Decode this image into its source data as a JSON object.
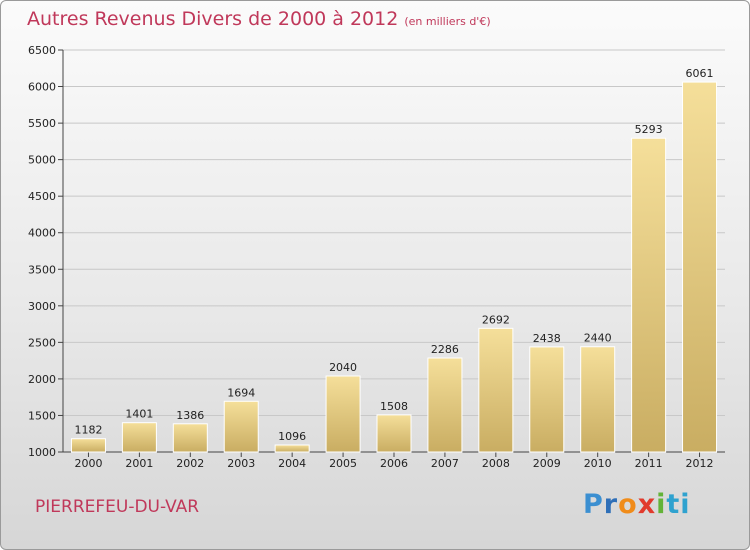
{
  "title": "Autres Revenus Divers de 2000 à 2012",
  "subtitle": "(en milliers d'€)",
  "location": "PIERREFEU-DU-VAR",
  "logo": {
    "text": "Proxiti",
    "letters": [
      "P",
      "r",
      "o",
      "x",
      "i",
      "ti"
    ]
  },
  "colors": {
    "title": "#c0385a",
    "bar_light": "#f5df9a",
    "bar_dark": "#c9ad62"
  },
  "chart_data": {
    "type": "bar",
    "categories": [
      "2000",
      "2001",
      "2002",
      "2003",
      "2004",
      "2005",
      "2006",
      "2007",
      "2008",
      "2009",
      "2010",
      "2011",
      "2012"
    ],
    "values": [
      1182,
      1401,
      1386,
      1694,
      1096,
      2040,
      1508,
      2286,
      2692,
      2438,
      2440,
      5293,
      6061
    ],
    "title": "Autres Revenus Divers de 2000 à 2012",
    "subtitle": "(en milliers d'€)",
    "ylim": [
      1000,
      6500
    ],
    "yticks": [
      1000,
      1500,
      2000,
      2500,
      3000,
      3500,
      4000,
      4500,
      5000,
      5500,
      6000,
      6500
    ],
    "grid": true,
    "data_labels": true
  }
}
